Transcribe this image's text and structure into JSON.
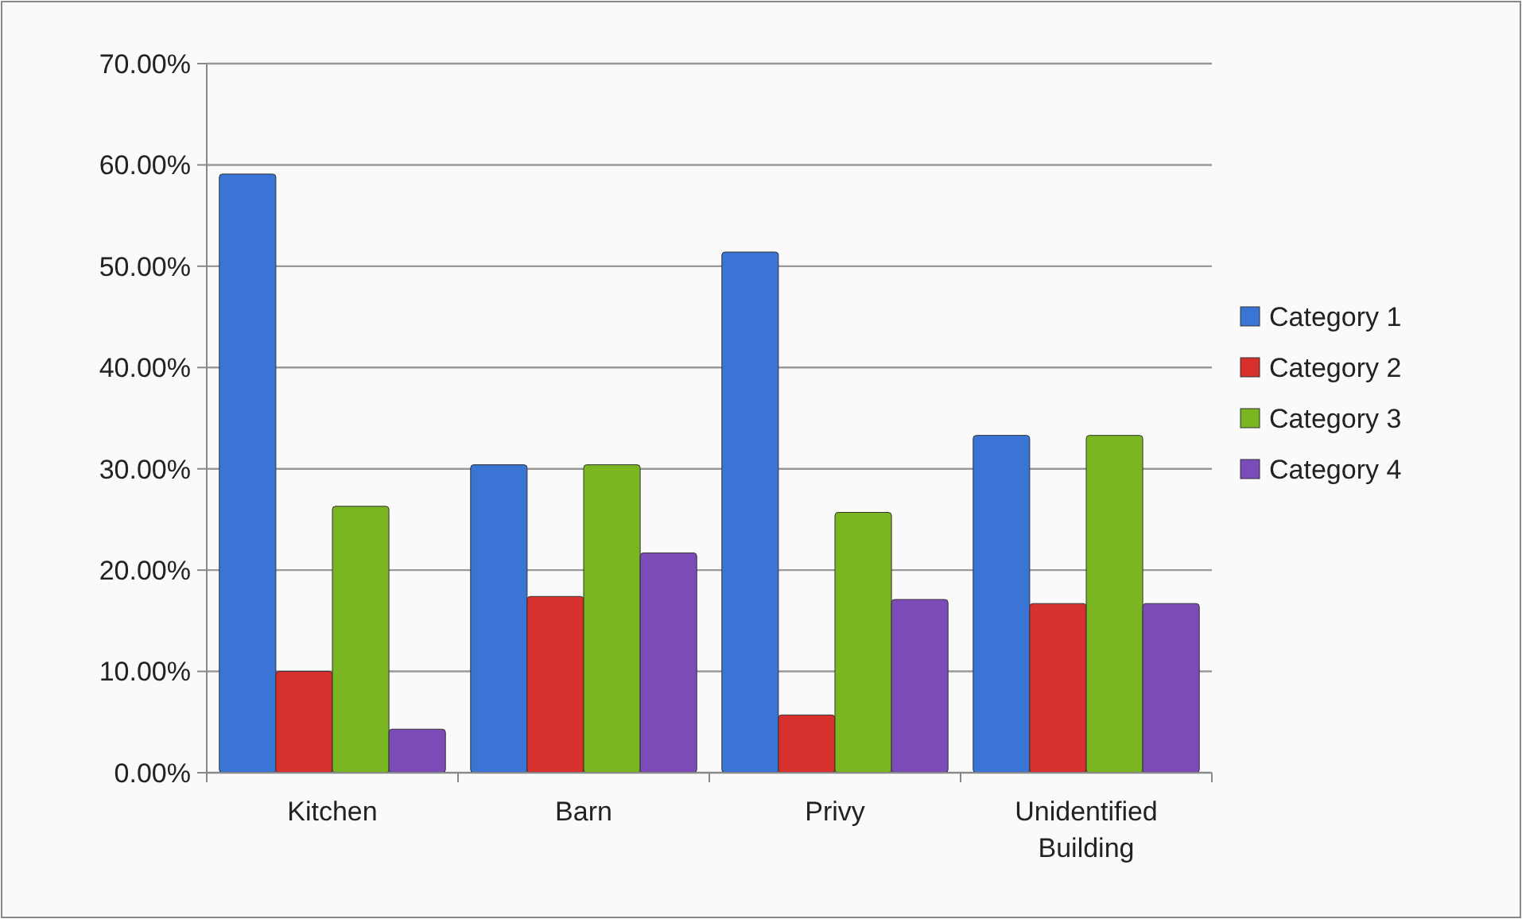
{
  "chart_data": {
    "type": "bar",
    "categories": [
      "Kitchen",
      "Barn",
      "Privy",
      "Unidentified Building"
    ],
    "series": [
      {
        "name": "Category 1",
        "color": "#3a74d4",
        "values": [
          59.1,
          30.4,
          51.4,
          33.3
        ]
      },
      {
        "name": "Category 2",
        "color": "#d8302c",
        "values": [
          10.0,
          17.4,
          5.7,
          16.7
        ]
      },
      {
        "name": "Category 3",
        "color": "#7ab522",
        "values": [
          26.3,
          30.4,
          25.7,
          33.3
        ]
      },
      {
        "name": "Category 4",
        "color": "#7b4cb8",
        "values": [
          4.3,
          21.7,
          17.1,
          16.7
        ]
      }
    ],
    "ylim": [
      0,
      70
    ],
    "yticks": [
      {
        "value": 0,
        "label": "0.00%"
      },
      {
        "value": 10,
        "label": "10.00%"
      },
      {
        "value": 20,
        "label": "20.00%"
      },
      {
        "value": 30,
        "label": "30.00%"
      },
      {
        "value": 40,
        "label": "40.00%"
      },
      {
        "value": 50,
        "label": "50.00%"
      },
      {
        "value": 60,
        "label": "60.00%"
      },
      {
        "value": 70,
        "label": "70.00%"
      }
    ],
    "grid": "y",
    "legend": "right"
  }
}
